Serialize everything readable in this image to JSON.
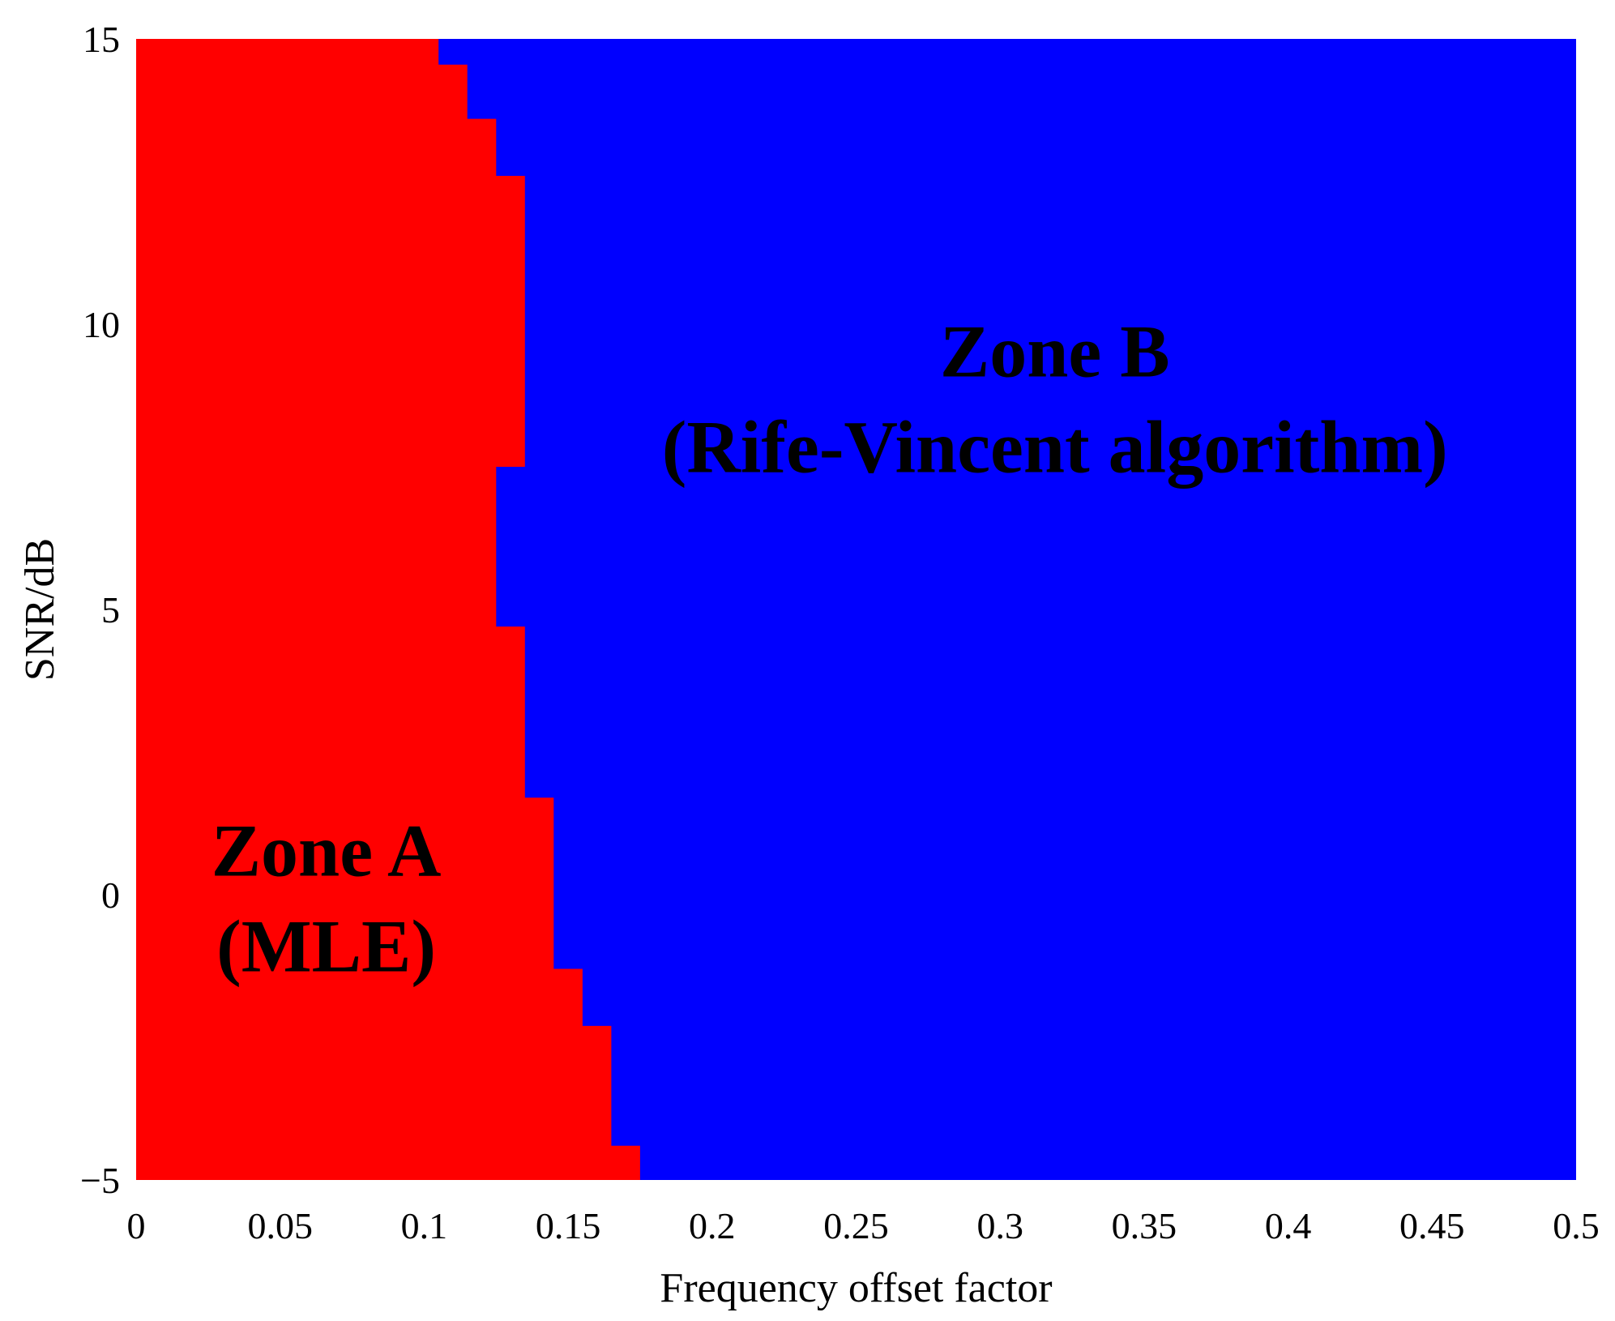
{
  "chart_data": {
    "type": "heatmap",
    "title": "",
    "xlabel": "Frequency offset factor",
    "ylabel": "SNR/dB",
    "xlim": [
      0,
      0.5
    ],
    "ylim": [
      -5,
      15
    ],
    "grid": false,
    "x_ticks": [
      "0",
      "0.05",
      "0.1",
      "0.15",
      "0.2",
      "0.25",
      "0.3",
      "0.35",
      "0.4",
      "0.45",
      "0.5"
    ],
    "y_ticks": [
      "−5",
      "0",
      "5",
      "10",
      "15"
    ],
    "boundary": [
      {
        "snr": [
          14.55,
          15
        ],
        "offset": 0.105
      },
      {
        "snr": [
          13.6,
          14.55
        ],
        "offset": 0.115
      },
      {
        "snr": [
          12.6,
          13.6
        ],
        "offset": 0.125
      },
      {
        "snr": [
          7.5,
          12.6
        ],
        "offset": 0.135
      },
      {
        "snr": [
          4.7,
          7.5
        ],
        "offset": 0.125
      },
      {
        "snr": [
          1.7,
          4.7
        ],
        "offset": 0.135
      },
      {
        "snr": [
          -1.3,
          1.7
        ],
        "offset": 0.145
      },
      {
        "snr": [
          -2.3,
          -1.3
        ],
        "offset": 0.155
      },
      {
        "snr": [
          -4.4,
          -2.3
        ],
        "offset": 0.165
      },
      {
        "snr": [
          -5,
          -4.4
        ],
        "offset": 0.175
      }
    ],
    "zones": [
      {
        "name": "Zone A",
        "method": "(MLE)",
        "color": "#ff0000",
        "label_pos": [
          0.066,
          0.05
        ]
      },
      {
        "name": "Zone B",
        "method": "(Rife-Vincent algorithm)",
        "color": "#0000ff",
        "label_pos": [
          0.319,
          8.8
        ]
      }
    ]
  }
}
